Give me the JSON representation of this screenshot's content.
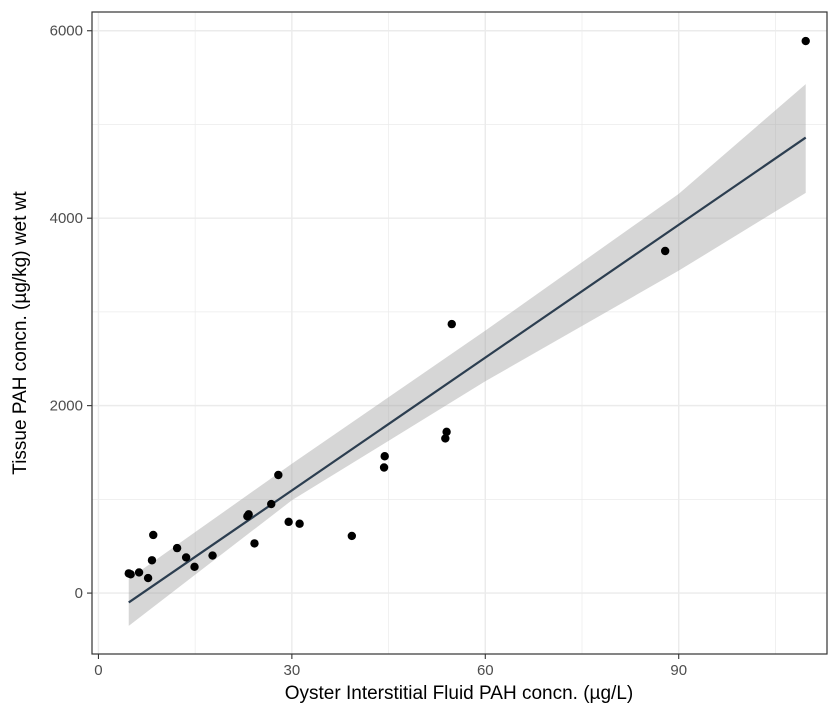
{
  "chart_data": {
    "type": "scatter",
    "title": "",
    "xlabel": "Oyster Interstitial Fluid PAH concn. (µg/L)",
    "ylabel": "Tissue PAH concn. (µg/kg) wet wt",
    "xlim": [
      -1,
      113
    ],
    "ylim": [
      -650,
      6200
    ],
    "x_ticks": [
      0,
      30,
      60,
      90
    ],
    "x_tick_labels": [
      "0",
      "30",
      "60",
      "90"
    ],
    "y_ticks": [
      0,
      2000,
      4000,
      6000
    ],
    "y_tick_labels": [
      "0",
      "2000",
      "4000",
      "6000"
    ],
    "grid": true,
    "legend": "none",
    "points": [
      {
        "x": 4.7,
        "y": 210
      },
      {
        "x": 5.0,
        "y": 200
      },
      {
        "x": 6.3,
        "y": 220
      },
      {
        "x": 7.7,
        "y": 160
      },
      {
        "x": 8.3,
        "y": 350
      },
      {
        "x": 8.5,
        "y": 620
      },
      {
        "x": 12.2,
        "y": 480
      },
      {
        "x": 13.6,
        "y": 380
      },
      {
        "x": 14.9,
        "y": 280
      },
      {
        "x": 17.7,
        "y": 400
      },
      {
        "x": 23.1,
        "y": 820
      },
      {
        "x": 23.3,
        "y": 840
      },
      {
        "x": 24.2,
        "y": 530
      },
      {
        "x": 26.8,
        "y": 950
      },
      {
        "x": 27.9,
        "y": 1260
      },
      {
        "x": 29.5,
        "y": 760
      },
      {
        "x": 31.2,
        "y": 740
      },
      {
        "x": 39.3,
        "y": 610
      },
      {
        "x": 44.3,
        "y": 1340
      },
      {
        "x": 44.4,
        "y": 1460
      },
      {
        "x": 53.8,
        "y": 1650
      },
      {
        "x": 54.0,
        "y": 1720
      },
      {
        "x": 54.8,
        "y": 2870
      },
      {
        "x": 87.9,
        "y": 3650
      },
      {
        "x": 109.7,
        "y": 5890
      }
    ],
    "fit_line": {
      "x": [
        4.7,
        109.7
      ],
      "y": [
        -100,
        4860
      ]
    },
    "confidence_band": {
      "x": [
        4.7,
        30,
        60,
        90,
        109.7
      ],
      "lower": [
        -350,
        990,
        2260,
        3440,
        4270
      ],
      "upper": [
        150,
        1380,
        2800,
        4260,
        5430
      ]
    },
    "colors": {
      "points": "#000000",
      "fit_line": "#2c3e50",
      "band": "#999999",
      "grid": "#ebebeb",
      "panel_border": "#333333"
    }
  }
}
